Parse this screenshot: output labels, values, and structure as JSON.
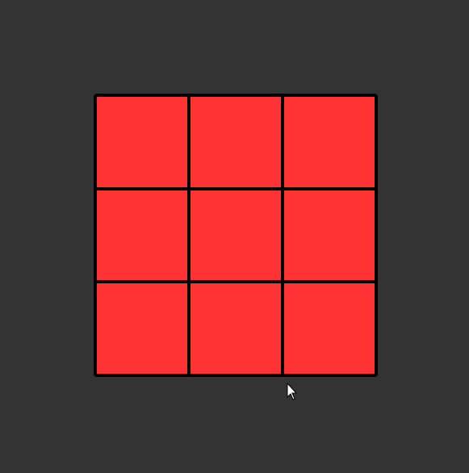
{
  "board": {
    "rows": 3,
    "cols": 3,
    "cells": [
      {
        "row": 1,
        "col": 1,
        "color": "#ff3333"
      },
      {
        "row": 1,
        "col": 2,
        "color": "#ff3333"
      },
      {
        "row": 1,
        "col": 3,
        "color": "#ff3333"
      },
      {
        "row": 2,
        "col": 1,
        "color": "#ff3333"
      },
      {
        "row": 2,
        "col": 2,
        "color": "#ff3333"
      },
      {
        "row": 2,
        "col": 3,
        "color": "#ff3333"
      },
      {
        "row": 3,
        "col": 1,
        "color": "#ff3333"
      },
      {
        "row": 3,
        "col": 2,
        "color": "#ff3333"
      },
      {
        "row": 3,
        "col": 3,
        "color": "#ff3333"
      }
    ]
  },
  "colors": {
    "background": "#333333",
    "grid_line": "#000000",
    "cell_fill": "#ff3333",
    "cursor_fill": "#ffffff"
  },
  "cursor": {
    "icon": "mouse-pointer-icon"
  }
}
